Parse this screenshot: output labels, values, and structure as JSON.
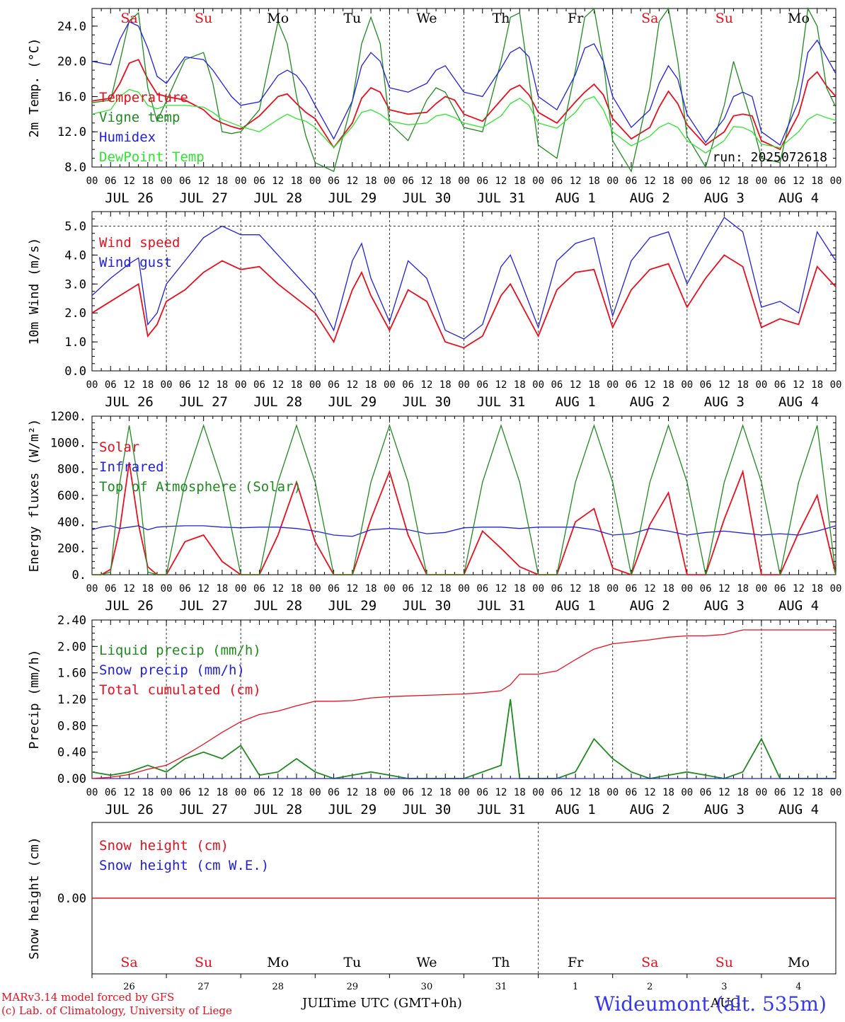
{
  "meta": {
    "run_label": "run: 2025072618",
    "xlabel": "Time UTC (GMT+0h)",
    "station": "Wideumont (alt. 535m)",
    "credits": [
      "MARv3.14 model forced by GFS",
      "(c) Lab. of Climatology, University of Liege"
    ],
    "month_labels": [
      "JUL",
      "AUG"
    ]
  },
  "days": {
    "weekday_labels": [
      "Sa",
      "Su",
      "Mo",
      "Tu",
      "We",
      "Th",
      "Fr",
      "Sa",
      "Su",
      "Mo"
    ],
    "weekend_flags": [
      true,
      true,
      false,
      false,
      false,
      false,
      false,
      true,
      true,
      false
    ],
    "date_labels": [
      "JUL 26",
      "JUL 27",
      "JUL 28",
      "JUL 29",
      "JUL 30",
      "JUL 31",
      "AUG  1",
      "AUG  2",
      "AUG  3",
      "AUG  4"
    ],
    "day_numbers": [
      "26",
      "27",
      "28",
      "29",
      "30",
      "31",
      "1",
      "2",
      "3",
      "4"
    ],
    "hour_labels": [
      "00",
      "06",
      "12",
      "18"
    ],
    "end_hour_label": "00"
  },
  "colors": {
    "red": "#e8101e",
    "green": "#1f8a1f",
    "lightgreen": "#2ee62e",
    "blue": "#2020e0",
    "grid": "#555555"
  },
  "chart_data": [
    {
      "type": "line",
      "ylabel": "2m Temp. (°C)",
      "ylim": [
        8,
        26
      ],
      "yticks": [
        "8.0",
        "12.0",
        "16.0",
        "20.0",
        "24.0"
      ],
      "x_hours": [
        0,
        6,
        9,
        12,
        15,
        18,
        21,
        24,
        30,
        36,
        39,
        42,
        45,
        48,
        54,
        60,
        63,
        66,
        69,
        72,
        78,
        84,
        87,
        90,
        93,
        96,
        102,
        108,
        111,
        114,
        117,
        120,
        126,
        132,
        135,
        138,
        141,
        144,
        150,
        156,
        159,
        162,
        165,
        168,
        174,
        180,
        183,
        186,
        189,
        192,
        198,
        204,
        207,
        210,
        213,
        216,
        222,
        228,
        231,
        234,
        237,
        240
      ],
      "series": [
        {
          "name": "Temperature",
          "color": "#e8101e",
          "values": [
            15.5,
            15.8,
            17.5,
            19.8,
            20.2,
            18.0,
            16.3,
            16.0,
            15.6,
            14.5,
            13.5,
            13.0,
            12.6,
            12.3,
            13.8,
            16.0,
            16.3,
            15.2,
            14.2,
            13.5,
            10.2,
            13.0,
            15.8,
            17.0,
            16.5,
            14.5,
            14.0,
            14.2,
            15.2,
            16.0,
            15.6,
            14.0,
            13.2,
            15.6,
            16.8,
            17.3,
            16.2,
            14.2,
            13.0,
            15.4,
            16.5,
            17.4,
            16.2,
            13.5,
            11.2,
            12.5,
            14.8,
            16.6,
            15.2,
            12.8,
            10.5,
            12.0,
            13.8,
            14.0,
            13.8,
            11.0,
            10.0,
            14.0,
            17.8,
            18.8,
            17.2,
            16.0
          ]
        },
        {
          "name": "Vigne temp",
          "color": "#1f8a1f",
          "values": [
            15.3,
            15.6,
            20.0,
            24.6,
            25.5,
            17.0,
            13.2,
            15.5,
            20.2,
            21.0,
            17.5,
            12.0,
            11.8,
            12.0,
            14.5,
            24.5,
            22.0,
            16.0,
            11.5,
            8.5,
            7.5,
            15.5,
            22.0,
            25.0,
            22.0,
            13.0,
            11.0,
            15.6,
            17.0,
            16.5,
            14.5,
            12.5,
            12.0,
            20.0,
            25.0,
            25.5,
            18.0,
            10.5,
            9.0,
            19.0,
            25.0,
            26.0,
            20.0,
            11.0,
            7.5,
            17.0,
            24.5,
            26.0,
            20.0,
            11.5,
            8.0,
            15.0,
            20.0,
            16.5,
            13.0,
            9.0,
            8.5,
            18.0,
            26.0,
            24.0,
            17.0,
            14.8
          ]
        },
        {
          "name": "Humidex",
          "color": "#2020e0",
          "values": [
            20.0,
            19.6,
            22.5,
            24.5,
            24.0,
            21.5,
            18.3,
            17.5,
            20.5,
            20.2,
            19.0,
            17.5,
            16.0,
            15.0,
            15.4,
            18.4,
            19.0,
            18.4,
            17.0,
            15.0,
            11.2,
            15.5,
            19.5,
            21.0,
            20.0,
            17.0,
            16.5,
            17.5,
            19.0,
            19.5,
            18.0,
            16.5,
            16.0,
            19.2,
            21.0,
            21.6,
            20.5,
            16.0,
            14.5,
            18.5,
            21.5,
            22.0,
            20.0,
            16.0,
            12.5,
            14.5,
            17.5,
            19.5,
            18.0,
            14.0,
            10.8,
            13.5,
            16.0,
            16.5,
            16.0,
            12.0,
            10.5,
            15.5,
            21.0,
            22.4,
            20.5,
            18.6
          ]
        },
        {
          "name": "DewPoint Temp",
          "color": "#2ee62e",
          "values": [
            14.0,
            14.5,
            16.0,
            16.8,
            16.5,
            15.0,
            14.6,
            15.0,
            15.0,
            14.8,
            14.2,
            13.4,
            13.0,
            12.6,
            12.0,
            13.4,
            14.0,
            13.5,
            13.2,
            12.5,
            10.2,
            12.6,
            14.2,
            14.5,
            14.0,
            13.2,
            12.8,
            13.0,
            13.8,
            14.0,
            13.6,
            13.0,
            12.5,
            13.8,
            15.2,
            15.8,
            15.0,
            13.0,
            12.4,
            14.2,
            15.6,
            16.0,
            14.5,
            12.0,
            10.4,
            11.5,
            12.5,
            13.0,
            12.5,
            11.0,
            9.6,
            11.0,
            12.6,
            12.5,
            12.0,
            10.6,
            10.2,
            12.0,
            13.4,
            14.0,
            13.6,
            13.3
          ]
        }
      ]
    },
    {
      "type": "line",
      "ylabel": "10m Wind (m/s)",
      "ylim": [
        0,
        5.5
      ],
      "yticks": [
        "0.0",
        "1.0",
        "2.0",
        "3.0",
        "4.0",
        "5.0"
      ],
      "x_hours": [
        0,
        6,
        12,
        15,
        18,
        21,
        24,
        30,
        36,
        42,
        48,
        54,
        60,
        66,
        72,
        78,
        84,
        87,
        90,
        96,
        102,
        108,
        114,
        120,
        126,
        132,
        135,
        138,
        144,
        150,
        156,
        162,
        168,
        174,
        180,
        186,
        192,
        198,
        204,
        210,
        216,
        222,
        228,
        234,
        240
      ],
      "series": [
        {
          "name": "Wind speed",
          "color": "#e8101e",
          "values": [
            2.0,
            2.4,
            2.8,
            3.0,
            1.2,
            1.6,
            2.4,
            2.8,
            3.4,
            3.8,
            3.5,
            3.6,
            3.0,
            2.5,
            2.0,
            1.0,
            2.8,
            3.4,
            2.6,
            1.4,
            2.8,
            2.4,
            1.0,
            0.8,
            1.2,
            2.6,
            3.0,
            2.4,
            1.2,
            2.8,
            3.4,
            3.5,
            1.5,
            2.8,
            3.5,
            3.7,
            2.2,
            3.2,
            4.0,
            3.6,
            1.5,
            1.8,
            1.6,
            3.6,
            2.9
          ]
        },
        {
          "name": "Wind gust",
          "color": "#2020e0",
          "values": [
            2.6,
            3.2,
            3.7,
            3.9,
            1.6,
            2.0,
            3.0,
            3.8,
            4.6,
            5.0,
            4.7,
            4.7,
            4.0,
            3.3,
            2.6,
            1.4,
            3.8,
            4.4,
            3.2,
            1.7,
            3.8,
            3.2,
            1.4,
            1.1,
            1.6,
            3.6,
            4.0,
            3.2,
            1.5,
            3.8,
            4.4,
            4.6,
            1.9,
            3.8,
            4.6,
            4.8,
            3.0,
            4.2,
            5.3,
            4.8,
            2.2,
            2.4,
            2.0,
            4.8,
            3.8
          ]
        }
      ]
    },
    {
      "type": "line",
      "ylabel": "Energy fluxes (W/m²)",
      "ylim": [
        0,
        1200
      ],
      "yticks": [
        "0.",
        "200.",
        "400.",
        "600.",
        "800.",
        "1000.",
        "1200."
      ],
      "x_hours": [
        0,
        3,
        6,
        9,
        12,
        15,
        18,
        21,
        24,
        30,
        36,
        42,
        48,
        54,
        60,
        66,
        72,
        78,
        84,
        90,
        96,
        102,
        108,
        114,
        120,
        126,
        132,
        138,
        144,
        150,
        156,
        162,
        168,
        174,
        180,
        186,
        192,
        198,
        204,
        210,
        216,
        222,
        228,
        234,
        240
      ],
      "series": [
        {
          "name": "Solar",
          "color": "#e8101e",
          "values": [
            0,
            0,
            40,
            350,
            850,
            380,
            60,
            0,
            0,
            250,
            300,
            100,
            0,
            0,
            300,
            700,
            250,
            0,
            0,
            420,
            780,
            300,
            0,
            0,
            0,
            330,
            200,
            60,
            0,
            0,
            400,
            500,
            50,
            0,
            380,
            620,
            0,
            0,
            420,
            780,
            0,
            0,
            320,
            600,
            0
          ]
        },
        {
          "name": "Infrared",
          "color": "#2020e0",
          "values": [
            340,
            360,
            370,
            350,
            360,
            370,
            340,
            360,
            365,
            370,
            370,
            360,
            355,
            360,
            360,
            350,
            330,
            300,
            290,
            340,
            350,
            340,
            310,
            320,
            355,
            360,
            360,
            350,
            360,
            360,
            360,
            340,
            300,
            310,
            350,
            330,
            300,
            320,
            330,
            315,
            300,
            310,
            300,
            330,
            370
          ]
        },
        {
          "name": "Top of Atmosphere (Solar)",
          "color": "#1f8a1f",
          "values": [
            0,
            0,
            20,
            700,
            1130,
            700,
            20,
            0,
            0,
            700,
            1130,
            700,
            0,
            0,
            700,
            1130,
            700,
            0,
            0,
            700,
            1130,
            700,
            0,
            0,
            0,
            700,
            1130,
            700,
            0,
            0,
            700,
            1130,
            700,
            0,
            700,
            1130,
            700,
            0,
            700,
            1130,
            700,
            0,
            700,
            1130,
            0
          ]
        }
      ]
    },
    {
      "type": "line",
      "ylabel": "Precip (mm/h)",
      "ylim": [
        0,
        2.4
      ],
      "yticks": [
        "0.00",
        "0.40",
        "0.80",
        "1.20",
        "1.60",
        "2.00",
        "2.40"
      ],
      "x_hours": [
        0,
        6,
        12,
        18,
        24,
        30,
        36,
        42,
        48,
        54,
        60,
        66,
        72,
        78,
        84,
        90,
        96,
        102,
        108,
        114,
        120,
        126,
        132,
        135,
        138,
        144,
        150,
        156,
        162,
        168,
        174,
        180,
        186,
        192,
        198,
        204,
        210,
        216,
        222,
        228,
        234,
        240
      ],
      "series": [
        {
          "name": "Liquid precip (mm/h)",
          "color": "#1f8a1f",
          "values": [
            0.1,
            0.05,
            0.1,
            0.2,
            0.1,
            0.3,
            0.4,
            0.3,
            0.5,
            0.05,
            0.1,
            0.3,
            0.1,
            0,
            0.05,
            0.1,
            0.05,
            0,
            0,
            0,
            0,
            0.1,
            0.2,
            1.2,
            0,
            0,
            0,
            0.1,
            0.6,
            0.3,
            0.1,
            0,
            0.05,
            0.1,
            0.05,
            0,
            0.1,
            0.6,
            0,
            0,
            0,
            0
          ]
        },
        {
          "name": "Snow precip (mm/h)",
          "color": "#2020e0",
          "values": [
            0,
            0,
            0,
            0,
            0,
            0,
            0,
            0,
            0,
            0,
            0,
            0,
            0,
            0,
            0,
            0,
            0,
            0,
            0,
            0,
            0,
            0,
            0,
            0,
            0,
            0,
            0,
            0,
            0,
            0,
            0,
            0,
            0,
            0,
            0,
            0,
            0,
            0,
            0,
            0,
            0,
            0
          ]
        },
        {
          "name": "Total cumulated (cm)",
          "color": "#e8101e",
          "values": [
            0.0,
            0.02,
            0.06,
            0.14,
            0.2,
            0.35,
            0.52,
            0.7,
            0.86,
            0.97,
            1.02,
            1.1,
            1.17,
            1.17,
            1.18,
            1.22,
            1.24,
            1.25,
            1.26,
            1.27,
            1.28,
            1.3,
            1.33,
            1.42,
            1.58,
            1.58,
            1.63,
            1.8,
            1.96,
            2.04,
            2.07,
            2.1,
            2.14,
            2.16,
            2.16,
            2.18,
            2.25,
            2.25,
            2.25,
            2.25,
            2.25,
            2.25
          ]
        }
      ]
    },
    {
      "type": "line",
      "ylabel": "Snow height (cm)",
      "ylim": [
        -1,
        1
      ],
      "yticks": [
        "0.00"
      ],
      "x_hours": [
        0,
        240
      ],
      "series": [
        {
          "name": "Snow height (cm)",
          "color": "#e8101e",
          "values": [
            0,
            0
          ]
        },
        {
          "name": "Snow height (cm W.E.)",
          "color": "#2020e0",
          "values": [
            0,
            0
          ]
        }
      ]
    }
  ]
}
